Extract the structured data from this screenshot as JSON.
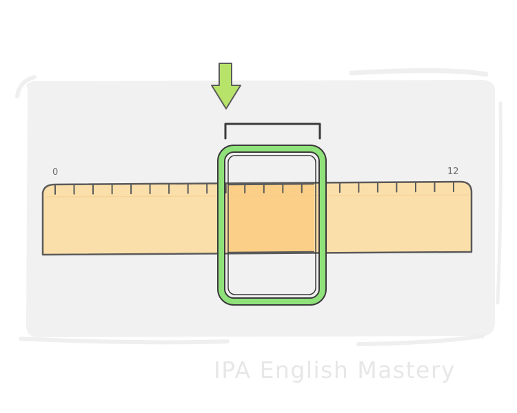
{
  "ruler": {
    "start_label": "0",
    "end_label": "12",
    "minor_ticks": 22
  },
  "highlight": {
    "shape": "rounded-rectangle",
    "arrow_icon": "down-arrow-icon",
    "bracket_icon": "bracket-icon"
  },
  "colors": {
    "panel": "#f1f1f1",
    "ruler_fill": "#fbdfaa",
    "ruler_highlight": "#fbcf87",
    "ruler_outline": "#5a5a5a",
    "frame_green": "#8fe27a",
    "frame_outline": "#3a3a3a",
    "arrow_green": "#b7e36b",
    "watermark": "#e7e7e7"
  },
  "watermark": {
    "text": "IPA English Mastery"
  }
}
